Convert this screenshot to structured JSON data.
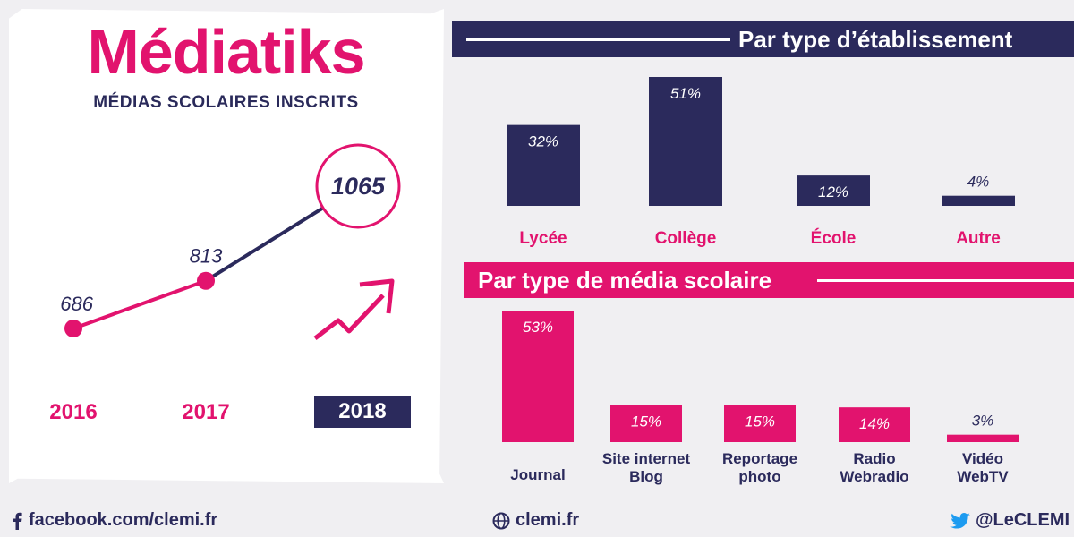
{
  "brand": "Médiatiks",
  "subtitle": "MÉDIAS SCOLAIRES INSCRITS",
  "colors": {
    "navy": "#2b2a5c",
    "pink": "#e2136e",
    "background": "#f0eff2"
  },
  "chart_data": [
    {
      "type": "line",
      "title": "MÉDIAS SCOLAIRES INSCRITS",
      "x": [
        "2016",
        "2017",
        "2018"
      ],
      "values": [
        686,
        813,
        1065
      ],
      "labels": [
        "686",
        "813",
        "1065"
      ],
      "highlight": "2018"
    },
    {
      "type": "bar",
      "title": "Par type d’établissement",
      "categories": [
        "Lycée",
        "Collège",
        "École",
        "Autre"
      ],
      "values": [
        32,
        51,
        12,
        4
      ],
      "labels": [
        "32%",
        "51%",
        "12%",
        "4%"
      ],
      "unit": "%",
      "color": "#2b2a5c",
      "ylim": [
        0,
        51
      ]
    },
    {
      "type": "bar",
      "title": "Par type de média scolaire",
      "categories": [
        [
          "Journal"
        ],
        [
          "Site internet",
          "Blog"
        ],
        [
          "Reportage",
          "photo"
        ],
        [
          "Radio",
          "Webradio"
        ],
        [
          "Vidéo",
          "WebTV"
        ]
      ],
      "values": [
        53,
        15,
        15,
        14,
        3
      ],
      "labels": [
        "53%",
        "15%",
        "15%",
        "14%",
        "3%"
      ],
      "unit": "%",
      "color": "#e2136e",
      "ylim": [
        0,
        53
      ]
    }
  ],
  "footer": {
    "facebook": "facebook.com/clemi.fr",
    "website": "clemi.fr",
    "twitter": "@LeCLEMI"
  },
  "icons": {
    "facebook": "facebook-icon",
    "website": "globe-icon",
    "twitter": "twitter-icon",
    "trend": "trend-arrow-icon"
  }
}
